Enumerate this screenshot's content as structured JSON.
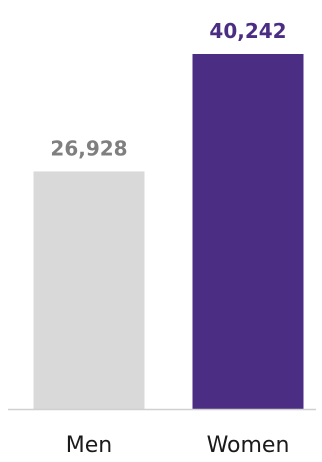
{
  "chart_data": {
    "type": "bar",
    "categories": [
      "Men",
      "Women"
    ],
    "values": [
      26928,
      40242
    ],
    "data_labels": [
      "26,928",
      "40,242"
    ],
    "ylim": [
      0,
      40242
    ],
    "grid": false,
    "colors": {
      "bars": [
        "#d9d9d9",
        "#4b2e83"
      ],
      "labels": [
        "#7f7f7f",
        "#4b2e83"
      ],
      "baseline": "#d0d0d0"
    }
  }
}
